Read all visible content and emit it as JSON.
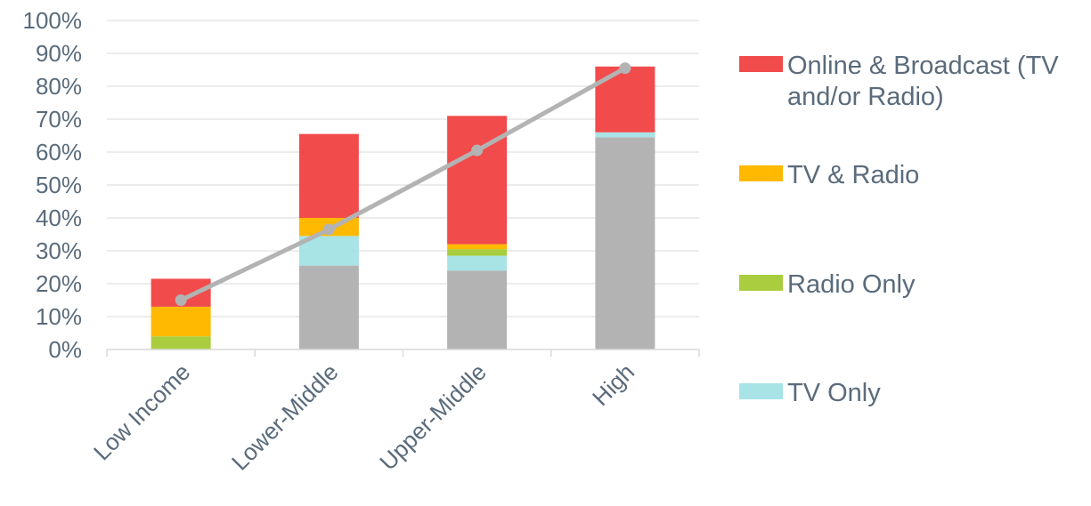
{
  "chart_data": {
    "type": "bar",
    "stacked": true,
    "categories": [
      "Low Income",
      "Lower-Middle",
      "Upper-Middle",
      "High"
    ],
    "series": [
      {
        "key": "base",
        "values": [
          0,
          25.5,
          24,
          64.5
        ],
        "color": "#b3b3b3"
      },
      {
        "key": "tv_only",
        "name": "TV Only",
        "values": [
          0,
          9,
          4.5,
          1.5
        ],
        "color": "#a8e3e6"
      },
      {
        "key": "radio_only",
        "name": "Radio Only",
        "values": [
          4,
          0,
          2,
          0
        ],
        "color": "#a9cd3f"
      },
      {
        "key": "tv_radio",
        "name": "TV & Radio",
        "values": [
          9,
          5.5,
          1.5,
          0
        ],
        "color": "#ffb900"
      },
      {
        "key": "online_broadcast",
        "name": "Online & Broadcast (TV and/or Radio)",
        "values": [
          8.5,
          25.5,
          39,
          20
        ],
        "color": "#f24b4b"
      }
    ],
    "line": {
      "values": [
        15,
        36.5,
        60.5,
        85.5
      ],
      "color": "#b3b3b3"
    },
    "legend_order": [
      "online_broadcast",
      "tv_radio",
      "radio_only",
      "tv_only"
    ],
    "legend_lines": [
      [
        "Online & Broadcast (TV",
        "and/or Radio)"
      ],
      [
        "TV & Radio"
      ],
      [
        "Radio Only"
      ],
      [
        "TV Only"
      ]
    ],
    "y_ticks": [
      "0%",
      "10%",
      "20%",
      "30%",
      "40%",
      "50%",
      "60%",
      "70%",
      "80%",
      "90%",
      "100%"
    ],
    "ylim": [
      0,
      100
    ],
    "grid": true,
    "legend_position": "right"
  }
}
